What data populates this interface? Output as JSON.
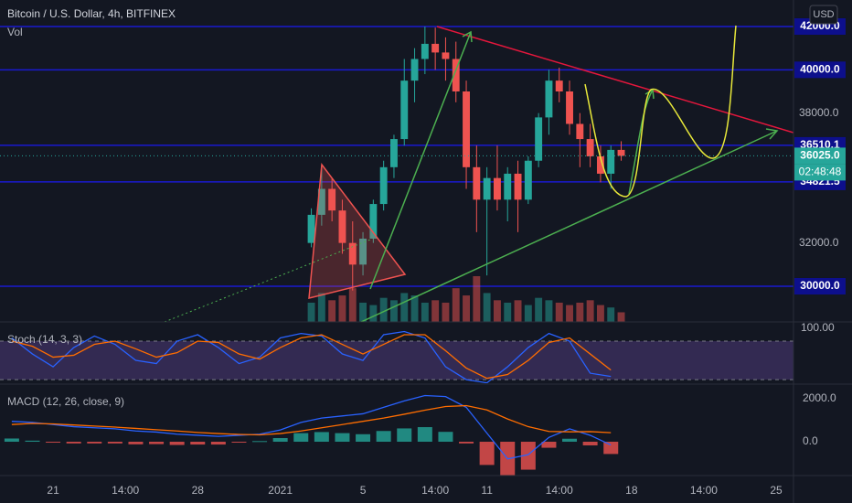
{
  "chart_data": {
    "type": "candlestick",
    "title": "Bitcoin / U.S. Dollar, 4h, BITFINEX",
    "volume_label": "Vol",
    "currency": "USD",
    "up_color": "#26a69a",
    "down_color": "#ef5350",
    "level_color": "#1a1ad0",
    "x": [
      33.5,
      34,
      34.5,
      35,
      35.5,
      36,
      36.5,
      37,
      37.5,
      38,
      38.5,
      39,
      39.5,
      40,
      40.5,
      41,
      41.5,
      42,
      42.5,
      43,
      43.5,
      44,
      44.5,
      45,
      45.5,
      46,
      46.5,
      47,
      47.5,
      48,
      48.5
    ],
    "open": [
      32000,
      33300,
      34500,
      33500,
      32000,
      31000,
      32200,
      33800,
      35500,
      36800,
      39500,
      40500,
      41200,
      40800,
      40500,
      39000,
      35500,
      34000,
      35000,
      34000,
      35200,
      34000,
      35800,
      37800,
      39500,
      39000,
      37500,
      36800,
      36000,
      35200,
      36300
    ],
    "high": [
      33600,
      35600,
      35000,
      34000,
      33000,
      32500,
      34000,
      35800,
      37000,
      40500,
      41000,
      42000,
      41950,
      41500,
      41300,
      39500,
      36500,
      35500,
      36500,
      35500,
      35800,
      36000,
      38000,
      40000,
      40100,
      39500,
      38000,
      37500,
      36500,
      36500,
      36700
    ],
    "low": [
      31800,
      32800,
      33000,
      31500,
      29800,
      30500,
      32000,
      33500,
      35000,
      36500,
      38500,
      39800,
      40000,
      39500,
      38500,
      34500,
      32500,
      30500,
      33500,
      33000,
      32500,
      33800,
      35500,
      37000,
      38500,
      37000,
      35500,
      35500,
      34800,
      34500,
      35800
    ],
    "close": [
      33300,
      34500,
      33500,
      32000,
      31000,
      32200,
      33800,
      35500,
      36800,
      39500,
      40500,
      41200,
      40800,
      40500,
      39000,
      35500,
      34000,
      35000,
      34000,
      35200,
      34000,
      35800,
      37800,
      39500,
      39000,
      37500,
      36800,
      36000,
      35200,
      36300,
      36025
    ],
    "volume": [
      40,
      60,
      45,
      55,
      70,
      40,
      35,
      50,
      45,
      60,
      55,
      40,
      45,
      40,
      70,
      55,
      95,
      60,
      45,
      40,
      45,
      35,
      50,
      45,
      40,
      35,
      40,
      45,
      35,
      30,
      20
    ],
    "xlim": [
      18.43,
      56.84
    ],
    "ylim": [
      28352,
      43225
    ],
    "yticks": [
      {
        "value": 32000,
        "label": "32000.0"
      },
      {
        "value": 38000,
        "label": "38000.0"
      }
    ],
    "xticks": [
      {
        "value": 21,
        "label": "21"
      },
      {
        "value": 24.5,
        "label": "14:00"
      },
      {
        "value": 28,
        "label": "28"
      },
      {
        "value": 32,
        "label": "2021"
      },
      {
        "value": 36,
        "label": "5"
      },
      {
        "value": 39.5,
        "label": "14:00"
      },
      {
        "value": 42,
        "label": "11"
      },
      {
        "value": 45.5,
        "label": "14:00"
      },
      {
        "value": 49,
        "label": "18"
      },
      {
        "value": 52.5,
        "label": "14:00"
      },
      {
        "value": 56,
        "label": "25"
      }
    ],
    "price_lines": [
      {
        "value": 42000,
        "label": "42000.0"
      },
      {
        "value": 40000,
        "label": "40000.0"
      },
      {
        "value": 36510.1,
        "label": "36510.1"
      },
      {
        "value": 34821.5,
        "label": "34821.5"
      },
      {
        "value": 30000,
        "label": "30000.0"
      }
    ],
    "last_price": {
      "value": 36025,
      "label": "36025.0"
    },
    "countdown": "02:48:48",
    "stoch": {
      "label": "Stoch (14, 3, 3)",
      "x": [
        19,
        20,
        21,
        22,
        23,
        24,
        25,
        26,
        27,
        28,
        29,
        30,
        31,
        32,
        33,
        34,
        35,
        36,
        37,
        38,
        39,
        40,
        41,
        42,
        43,
        44,
        45,
        46,
        47,
        48
      ],
      "k": [
        85,
        60,
        40,
        70,
        88,
        75,
        50,
        45,
        80,
        90,
        70,
        45,
        55,
        85,
        92,
        88,
        60,
        50,
        90,
        95,
        85,
        40,
        20,
        15,
        40,
        70,
        92,
        80,
        30,
        25
      ],
      "d": [
        80,
        72,
        55,
        58,
        75,
        80,
        68,
        55,
        62,
        80,
        78,
        60,
        52,
        70,
        85,
        90,
        75,
        60,
        75,
        90,
        90,
        65,
        38,
        22,
        28,
        50,
        78,
        85,
        60,
        35
      ],
      "k_color": "#2962ff",
      "d_color": "#ff6d00",
      "bands": [
        80,
        20
      ],
      "ylim": [
        13,
        110
      ],
      "yticks": [
        {
          "value": 100,
          "label": "100.00"
        }
      ]
    },
    "macd": {
      "label": "MACD (12, 26, close, 9)",
      "x": [
        19,
        20,
        21,
        22,
        23,
        24,
        25,
        26,
        27,
        28,
        29,
        30,
        31,
        32,
        33,
        34,
        35,
        36,
        37,
        38,
        39,
        40,
        41,
        42,
        43,
        44,
        45,
        46,
        47,
        48
      ],
      "macd": [
        950,
        900,
        800,
        700,
        650,
        600,
        500,
        450,
        350,
        300,
        250,
        300,
        350,
        550,
        900,
        1100,
        1200,
        1300,
        1600,
        1900,
        2150,
        2100,
        1600,
        400,
        -800,
        -600,
        200,
        600,
        300,
        -150
      ],
      "signal": [
        800,
        850,
        830,
        780,
        730,
        680,
        620,
        560,
        500,
        430,
        380,
        340,
        320,
        380,
        500,
        650,
        800,
        950,
        1100,
        1280,
        1470,
        1640,
        1680,
        1480,
        1060,
        700,
        480,
        460,
        470,
        420
      ],
      "hist": [
        150,
        50,
        -30,
        -80,
        -80,
        -80,
        -120,
        -110,
        -150,
        -130,
        -130,
        -40,
        30,
        170,
        400,
        450,
        400,
        350,
        500,
        620,
        680,
        460,
        -80,
        -1080,
        -1860,
        -1300,
        -280,
        140,
        -170,
        -570
      ],
      "macd_color": "#2962ff",
      "signal_color": "#ff6d00",
      "ylim": [
        -1574,
        2681
      ],
      "yticks": [
        {
          "value": 2000,
          "label": "2000.0"
        },
        {
          "value": 0,
          "label": "0.0"
        }
      ]
    }
  }
}
